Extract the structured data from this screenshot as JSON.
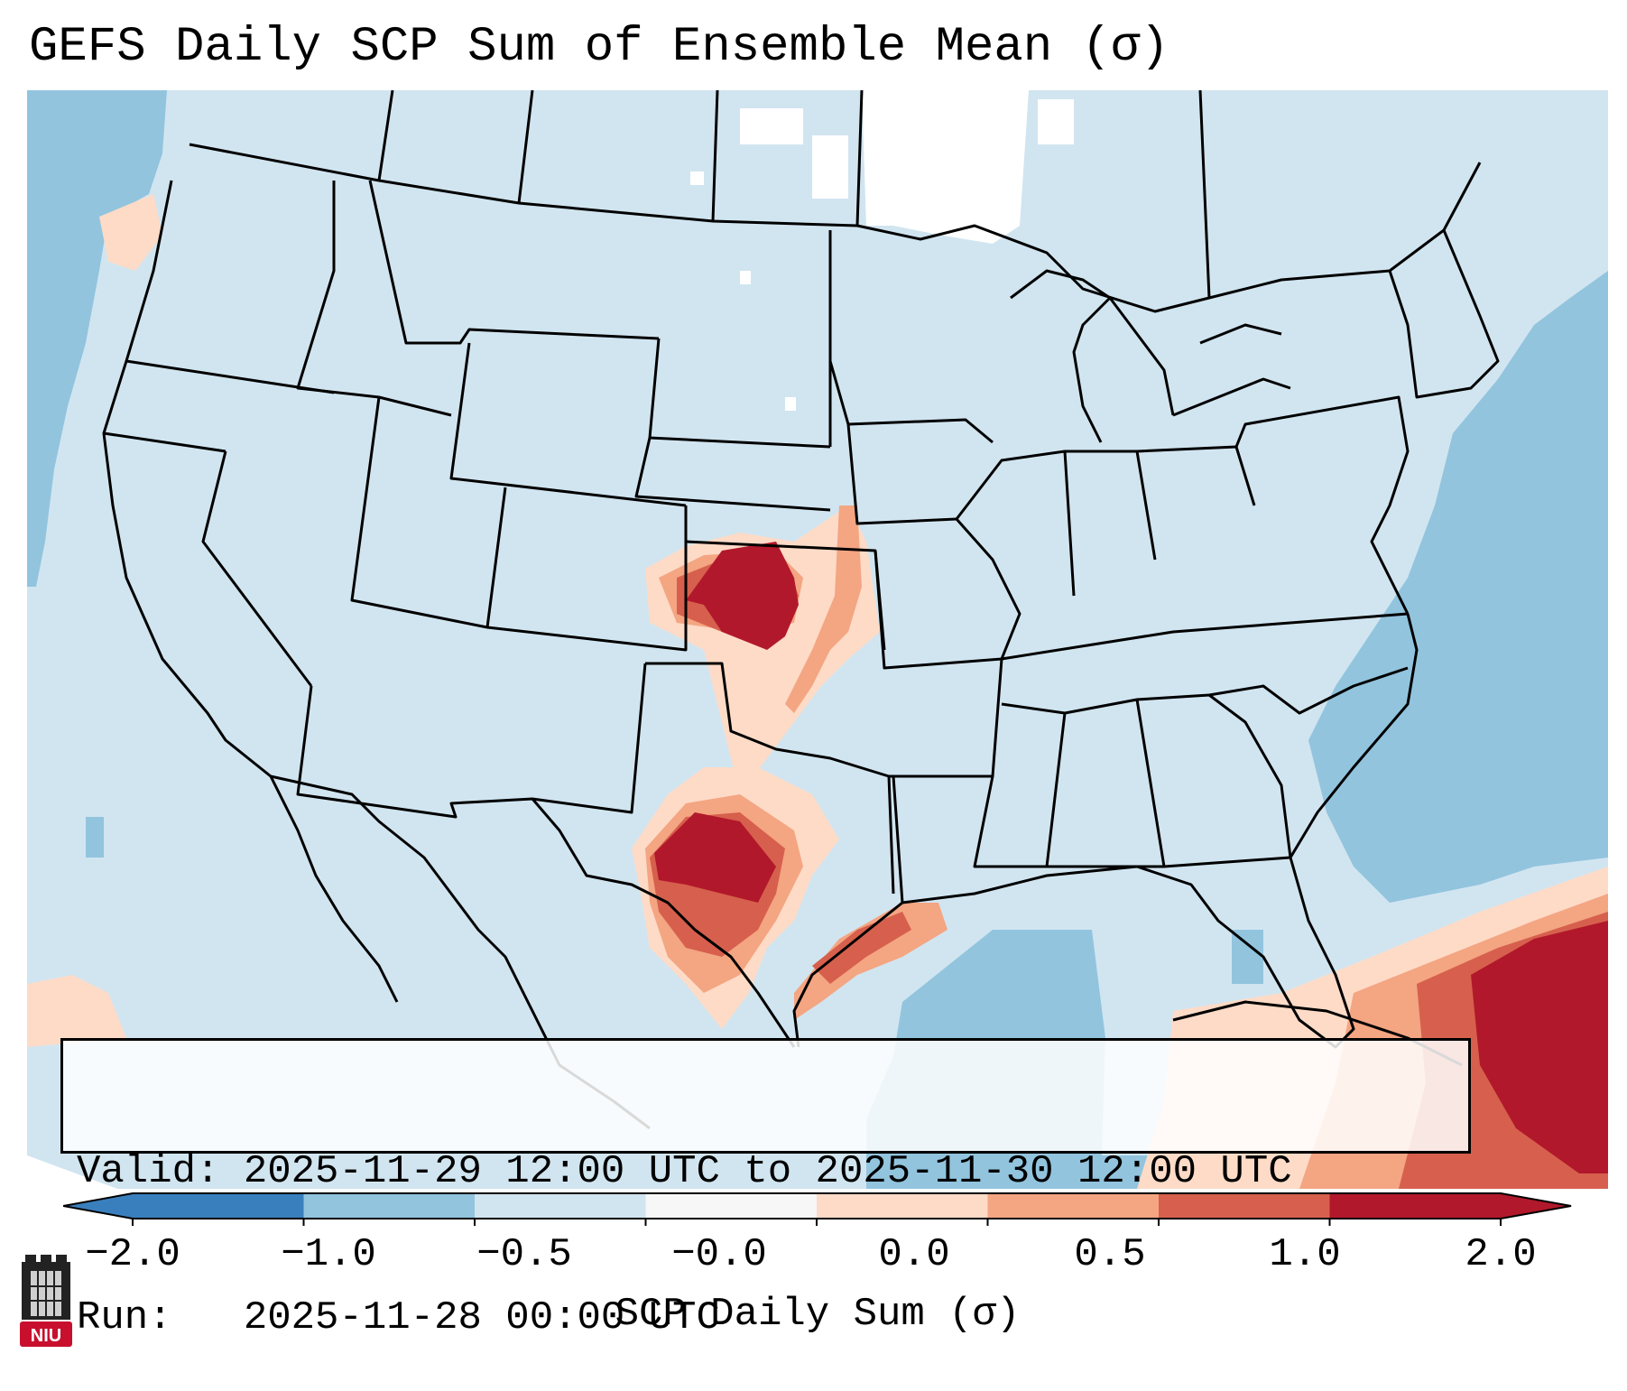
{
  "title": "GEFS Daily SCP Sum of Ensemble Mean (σ)",
  "info": {
    "valid_label": "Valid:",
    "valid_value": "2025-11-29 12:00 UTC to 2025-11-30 12:00 UTC",
    "run_label": "Run:",
    "run_value": "2025-11-28 00:00 UTC"
  },
  "colorbar": {
    "label": "SCP Daily Sum (σ)",
    "ticks": [
      "−2.0",
      "−1.0",
      "−0.5",
      "−0.0",
      "0.0",
      "0.5",
      "1.0",
      "2.0"
    ],
    "colors": [
      "#3a7fbd",
      "#92c4de",
      "#d1e5f0",
      "#f7f7f7",
      "#fddbc7",
      "#f4a582",
      "#d6604d",
      "#b2182b"
    ],
    "extend": "both"
  },
  "map": {
    "region": "CONUS",
    "background_color": "#d1e5f0",
    "ocean_color": "#92c4de",
    "missing_color": "#ffffff",
    "anomaly_areas": [
      {
        "name": "Kansas",
        "max_sigma": "≥2.0"
      },
      {
        "name": "West Texas",
        "max_sigma": "≥2.0"
      },
      {
        "name": "Texas Gulf Coast",
        "max_sigma": "1.0"
      },
      {
        "name": "Western Caribbean",
        "max_sigma": "≥2.0"
      }
    ]
  },
  "logo": {
    "text": "NIU"
  }
}
